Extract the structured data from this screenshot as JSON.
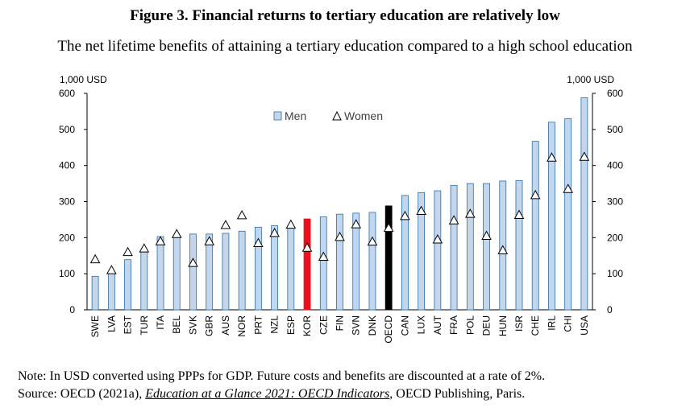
{
  "title": "Figure 3. Financial returns to tertiary education are relatively low",
  "subtitle": "The net lifetime benefits of attaining a tertiary education compared to a high school education",
  "note": {
    "line1": "Note: In USD converted using PPPs for GDP. Future costs and benefits are discounted at a rate of 2%.",
    "source_prefix": "Source: OECD (2021a), ",
    "source_title": "Education at a Glance 2021: OECD Indicators",
    "source_suffix": ", OECD Publishing, Paris."
  },
  "chart_data": {
    "type": "bar",
    "left_axis_unit": "1,000 USD",
    "right_axis_unit": "1,000 USD",
    "ylim": [
      0,
      600
    ],
    "yticks": [
      0,
      100,
      200,
      300,
      400,
      500,
      600
    ],
    "grid": false,
    "legend_position": "top-center",
    "categories": [
      "SWE",
      "LVA",
      "EST",
      "TUR",
      "ITA",
      "BEL",
      "SVK",
      "GBR",
      "AUS",
      "NOR",
      "PRT",
      "NZL",
      "ESP",
      "KOR",
      "CZE",
      "FIN",
      "SVN",
      "DNK",
      "OECD",
      "CAN",
      "LUX",
      "AUT",
      "FRA",
      "POL",
      "DEU",
      "HUN",
      "ISR",
      "CHE",
      "IRL",
      "CHI",
      "USA"
    ],
    "series": [
      {
        "name": "Men",
        "mark": "bar",
        "values": [
          93,
          103,
          139,
          163,
          203,
          207,
          210,
          210,
          212,
          218,
          229,
          233,
          232,
          252,
          258,
          265,
          268,
          270,
          288,
          317,
          325,
          330,
          345,
          350,
          350,
          357,
          358,
          467,
          520,
          530,
          588
        ]
      },
      {
        "name": "Women",
        "mark": "triangle",
        "values": [
          140,
          110,
          160,
          170,
          190,
          210,
          130,
          190,
          235,
          262,
          185,
          213,
          236,
          172,
          147,
          202,
          237,
          189,
          227,
          260,
          274,
          195,
          248,
          266,
          205,
          165,
          263,
          318,
          422,
          335,
          424
        ]
      }
    ],
    "highlight": {
      "KOR": "#e8111d",
      "OECD": "#000000"
    },
    "colors": {
      "bar": "#c3d6ec",
      "bar_edge": "#2b6ea6",
      "marker_fill": "#ffffff",
      "marker_edge": "#000000"
    }
  }
}
